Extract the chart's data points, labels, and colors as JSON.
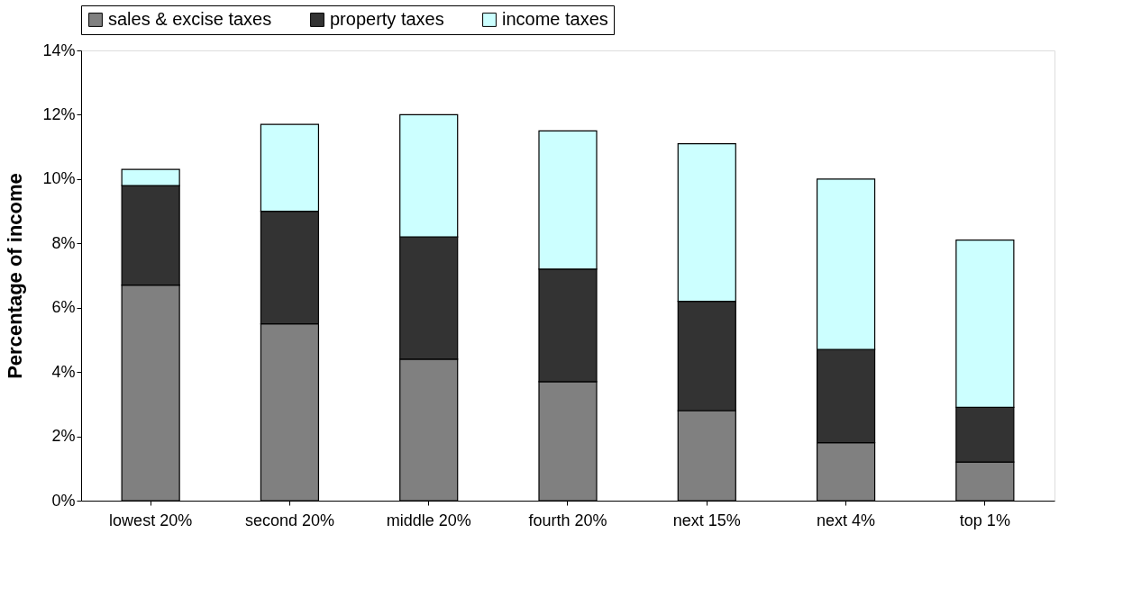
{
  "chart_data": {
    "type": "bar",
    "stacked": true,
    "ylabel": "Percentage of income",
    "categories": [
      "lowest 20%",
      "second 20%",
      "middle 20%",
      "fourth 20%",
      "next 15%",
      "next 4%",
      "top 1%"
    ],
    "series": [
      {
        "name": "sales & excise taxes",
        "color": "#808080",
        "values": [
          6.7,
          5.5,
          4.4,
          3.7,
          2.8,
          1.8,
          1.2
        ]
      },
      {
        "name": "property taxes",
        "color": "#333333",
        "values": [
          3.1,
          3.5,
          3.8,
          3.5,
          3.4,
          2.9,
          1.7
        ]
      },
      {
        "name": "income taxes",
        "color": "#ccffff",
        "values": [
          0.5,
          2.7,
          3.8,
          4.3,
          4.9,
          5.3,
          5.2
        ]
      }
    ],
    "ylim": [
      0,
      14
    ],
    "yticks": [
      {
        "value": 0,
        "label": "0%"
      },
      {
        "value": 2,
        "label": "2%"
      },
      {
        "value": 4,
        "label": "4%"
      },
      {
        "value": 6,
        "label": "6%"
      },
      {
        "value": 8,
        "label": "8%"
      },
      {
        "value": 10,
        "label": "10%"
      },
      {
        "value": 12,
        "label": "12%"
      },
      {
        "value": 14,
        "label": "14%"
      }
    ],
    "grid": false,
    "legend": "top"
  }
}
